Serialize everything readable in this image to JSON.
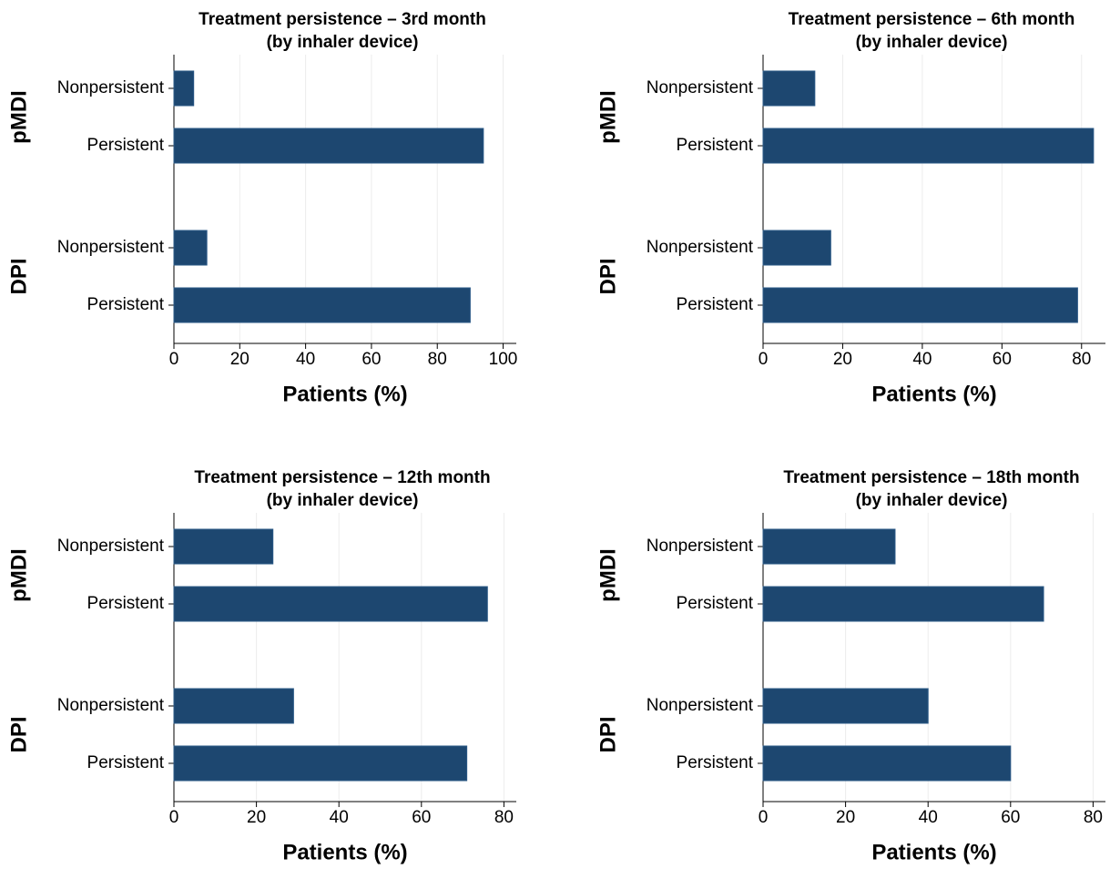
{
  "chart_data": [
    {
      "type": "bar",
      "orientation": "horizontal",
      "title": [
        "Treatment persistence – 3rd month",
        "(by inhaler device)"
      ],
      "groups": [
        "pMDI",
        "DPI"
      ],
      "categories": [
        "Nonpersistent",
        "Persistent",
        "Nonpersistent",
        "Persistent"
      ],
      "values": [
        6,
        94,
        10,
        90
      ],
      "color": "#1d4770",
      "xlabel": "Patients (%)",
      "xlim": [
        0,
        104
      ],
      "xticks": [
        0,
        20,
        40,
        60,
        80,
        100
      ],
      "grid": true
    },
    {
      "type": "bar",
      "orientation": "horizontal",
      "title": [
        "Treatment persistence – 6th month",
        "(by inhaler device)"
      ],
      "groups": [
        "pMDI",
        "DPI"
      ],
      "categories": [
        "Nonpersistent",
        "Persistent",
        "Nonpersistent",
        "Persistent"
      ],
      "values": [
        13,
        83,
        17,
        79
      ],
      "color": "#1d4770",
      "xlabel": "Patients (%)",
      "xlim": [
        0,
        86
      ],
      "xticks": [
        0,
        20,
        40,
        60,
        80
      ],
      "grid": true
    },
    {
      "type": "bar",
      "orientation": "horizontal",
      "title": [
        "Treatment persistence – 12th month",
        "(by inhaler device)"
      ],
      "groups": [
        "pMDI",
        "DPI"
      ],
      "categories": [
        "Nonpersistent",
        "Persistent",
        "Nonpersistent",
        "Persistent"
      ],
      "values": [
        24,
        76,
        29,
        71
      ],
      "color": "#1d4770",
      "xlabel": "Patients (%)",
      "xlim": [
        0,
        83
      ],
      "xticks": [
        0,
        20,
        40,
        60,
        80
      ],
      "grid": true
    },
    {
      "type": "bar",
      "orientation": "horizontal",
      "title": [
        "Treatment persistence – 18th month",
        "(by inhaler device)"
      ],
      "groups": [
        "pMDI",
        "DPI"
      ],
      "categories": [
        "Nonpersistent",
        "Persistent",
        "Nonpersistent",
        "Persistent"
      ],
      "values": [
        32,
        68,
        40,
        60
      ],
      "color": "#1d4770",
      "xlabel": "Patients (%)",
      "xlim": [
        0,
        83
      ],
      "xticks": [
        0,
        20,
        40,
        60,
        80
      ],
      "grid": true
    }
  ]
}
